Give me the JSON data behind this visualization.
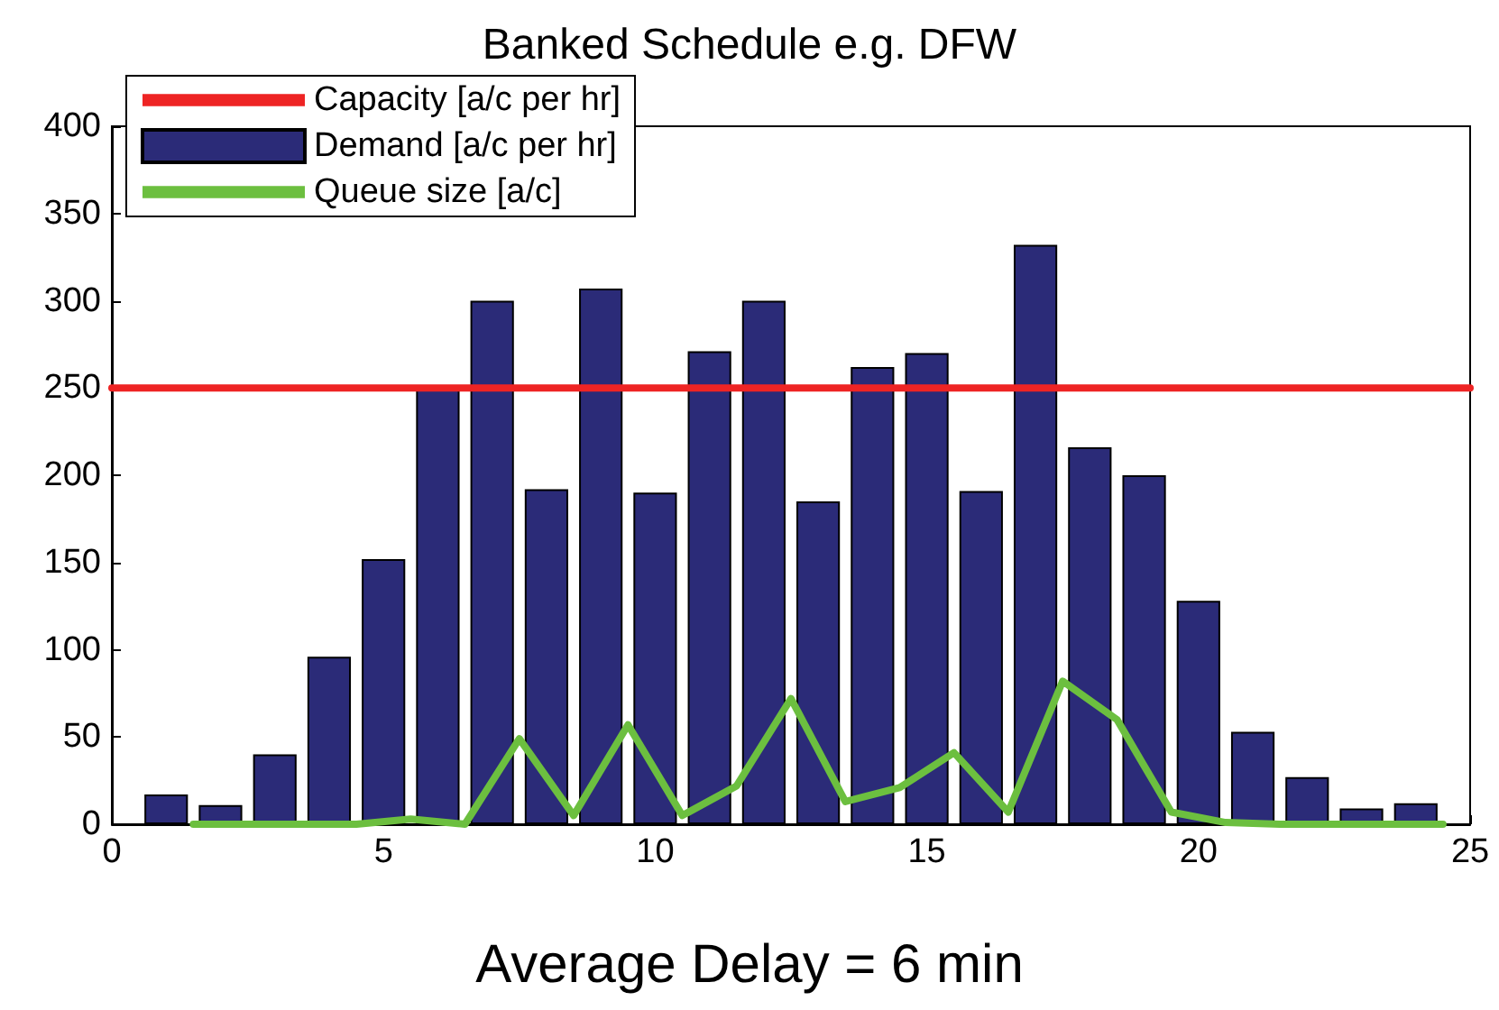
{
  "chart_data": {
    "type": "bar",
    "title": "Banked Schedule e.g. DFW",
    "annotations": [
      "Average Delay = 6 min"
    ],
    "x": [
      1,
      2,
      3,
      4,
      5,
      6,
      7,
      8,
      9,
      10,
      11,
      12,
      13,
      14,
      15,
      16,
      17,
      18,
      19,
      20,
      21,
      22,
      23,
      24
    ],
    "series": [
      {
        "name": "Capacity [a/c per hr]",
        "type": "line",
        "color": "#ee2424",
        "x": [
          0,
          25
        ],
        "values": [
          250,
          250
        ]
      },
      {
        "name": "Demand [a/c per hr]",
        "color": "#2b2b78",
        "values": [
          17,
          11,
          40,
          96,
          152,
          250,
          300,
          192,
          307,
          190,
          271,
          300,
          185,
          262,
          270,
          191,
          332,
          216,
          200,
          128,
          53,
          27,
          9,
          12
        ]
      },
      {
        "name": "Queue size [a/c]",
        "type": "line",
        "color": "#6cbf3f",
        "x": [
          1.5,
          2.5,
          3.5,
          4.5,
          5.5,
          6.5,
          7.5,
          8.5,
          9.5,
          10.5,
          11.5,
          12.5,
          13.5,
          14.5,
          15.5,
          16.5,
          17.5,
          18.5,
          19.5,
          20.5,
          21.5,
          22.5,
          23.5,
          24.5
        ],
        "values": [
          0,
          0,
          0,
          0,
          3,
          0,
          49,
          5,
          57,
          5,
          22,
          72,
          13,
          21,
          41,
          7,
          82,
          60,
          7,
          1,
          0,
          0,
          0,
          0
        ]
      }
    ],
    "xlim": [
      0,
      25
    ],
    "xticks": [
      0,
      5,
      10,
      15,
      20,
      25
    ],
    "ylim": [
      0,
      400
    ],
    "yticks": [
      0,
      50,
      100,
      150,
      200,
      250,
      300,
      350,
      400
    ],
    "grid": false,
    "legend": "top left",
    "marker": "none",
    "line_style": "solid"
  }
}
